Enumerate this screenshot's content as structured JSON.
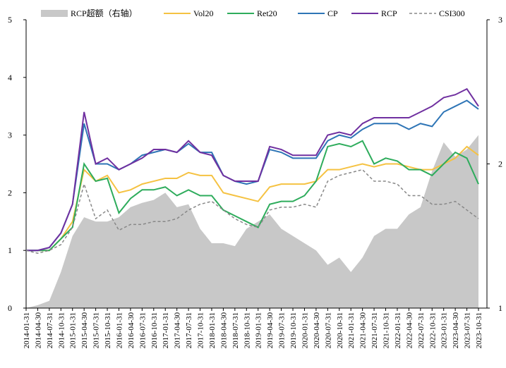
{
  "chart_data": {
    "type": "line",
    "categories": [
      "2014-01-31",
      "2014-04-30",
      "2014-07-31",
      "2014-10-31",
      "2015-01-31",
      "2015-04-30",
      "2015-07-31",
      "2015-10-31",
      "2016-01-31",
      "2016-04-30",
      "2016-07-31",
      "2016-10-31",
      "2017-01-31",
      "2017-04-30",
      "2017-07-31",
      "2017-10-31",
      "2018-01-31",
      "2018-04-30",
      "2018-07-31",
      "2018-10-31",
      "2019-01-31",
      "2019-04-30",
      "2019-07-31",
      "2019-10-31",
      "2020-01-31",
      "2020-04-30",
      "2020-07-31",
      "2020-10-31",
      "2021-01-31",
      "2021-04-30",
      "2021-07-31",
      "2021-10-31",
      "2022-01-31",
      "2022-04-30",
      "2022-07-31",
      "2022-10-31",
      "2023-01-31",
      "2023-04-30",
      "2023-07-31",
      "2023-10-31"
    ],
    "ylim": [
      0,
      5
    ],
    "yticks": [
      0,
      1,
      2,
      3,
      4,
      5
    ],
    "y2lim": [
      1,
      3
    ],
    "y2ticks": [
      1,
      2,
      3
    ],
    "series": [
      {
        "name": "RCP超额（右轴）",
        "color": "#c8c8c8",
        "style": "area",
        "axis": "y2",
        "values": [
          1.0,
          1.02,
          1.05,
          1.25,
          1.5,
          1.63,
          1.6,
          1.6,
          1.63,
          1.7,
          1.73,
          1.75,
          1.8,
          1.7,
          1.72,
          1.55,
          1.45,
          1.45,
          1.43,
          1.55,
          1.6,
          1.65,
          1.55,
          1.5,
          1.45,
          1.4,
          1.3,
          1.35,
          1.25,
          1.35,
          1.5,
          1.55,
          1.55,
          1.65,
          1.7,
          1.95,
          2.15,
          2.05,
          2.1,
          2.2
        ]
      },
      {
        "name": "Vol20",
        "color": "#f5c242",
        "values": [
          1,
          1.0,
          1.0,
          1.2,
          1.5,
          2.4,
          2.2,
          2.3,
          2.0,
          2.05,
          2.15,
          2.2,
          2.25,
          2.25,
          2.35,
          2.3,
          2.3,
          2.0,
          1.95,
          1.9,
          1.85,
          2.1,
          2.15,
          2.15,
          2.15,
          2.2,
          2.4,
          2.4,
          2.45,
          2.5,
          2.45,
          2.5,
          2.5,
          2.45,
          2.4,
          2.4,
          2.5,
          2.6,
          2.8,
          2.65
        ]
      },
      {
        "name": "Ret20",
        "color": "#2eac5c",
        "values": [
          1,
          1.0,
          1.0,
          1.2,
          1.4,
          2.5,
          2.2,
          2.25,
          1.65,
          1.9,
          2.05,
          2.05,
          2.1,
          1.95,
          2.05,
          1.95,
          1.95,
          1.7,
          1.6,
          1.5,
          1.4,
          1.8,
          1.85,
          1.85,
          1.95,
          2.2,
          2.8,
          2.85,
          2.8,
          2.9,
          2.5,
          2.6,
          2.55,
          2.4,
          2.4,
          2.3,
          2.5,
          2.7,
          2.6,
          2.15
        ]
      },
      {
        "name": "CP",
        "color": "#2e75b6",
        "values": [
          1,
          1.0,
          1.05,
          1.3,
          1.8,
          3.2,
          2.5,
          2.5,
          2.4,
          2.5,
          2.65,
          2.7,
          2.75,
          2.7,
          2.85,
          2.7,
          2.7,
          2.3,
          2.2,
          2.15,
          2.2,
          2.75,
          2.7,
          2.6,
          2.6,
          2.6,
          2.9,
          3.0,
          2.95,
          3.1,
          3.2,
          3.2,
          3.2,
          3.1,
          3.2,
          3.15,
          3.4,
          3.5,
          3.6,
          3.45
        ]
      },
      {
        "name": "RCP",
        "color": "#7030a0",
        "values": [
          1,
          1.0,
          1.05,
          1.3,
          1.8,
          3.4,
          2.5,
          2.6,
          2.4,
          2.5,
          2.6,
          2.75,
          2.75,
          2.7,
          2.9,
          2.7,
          2.65,
          2.3,
          2.2,
          2.2,
          2.2,
          2.8,
          2.75,
          2.65,
          2.65,
          2.65,
          3.0,
          3.05,
          3.0,
          3.2,
          3.3,
          3.3,
          3.3,
          3.3,
          3.4,
          3.5,
          3.65,
          3.7,
          3.8,
          3.5
        ]
      },
      {
        "name": "CSI300",
        "color": "#888888",
        "dashed": true,
        "values": [
          1,
          0.95,
          1.0,
          1.1,
          1.4,
          2.15,
          1.55,
          1.7,
          1.35,
          1.45,
          1.45,
          1.5,
          1.5,
          1.55,
          1.7,
          1.8,
          1.85,
          1.7,
          1.55,
          1.45,
          1.4,
          1.7,
          1.75,
          1.75,
          1.8,
          1.75,
          2.2,
          2.3,
          2.35,
          2.4,
          2.2,
          2.2,
          2.15,
          1.95,
          1.95,
          1.8,
          1.8,
          1.85,
          1.7,
          1.55
        ]
      }
    ]
  }
}
